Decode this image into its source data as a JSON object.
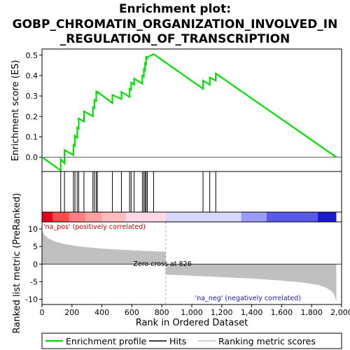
{
  "chart_data": {
    "type": "line",
    "title_lines": [
      "Enrichment plot:",
      "GOBP_CHROMATIN_ORGANIZATION_INVOLVED_IN",
      "_REGULATION_OF_TRANSCRIPTION"
    ],
    "xlabel": "Rank in Ordered Dataset",
    "xlim": [
      0,
      2000
    ],
    "x_ticks": [
      0,
      200,
      400,
      600,
      800,
      1000,
      1200,
      1400,
      1600,
      1800,
      2000
    ],
    "x_tick_labels": [
      "0",
      "200",
      "400",
      "600",
      "800",
      "1,000",
      "1,200",
      "1,400",
      "1,600",
      "1,800",
      "2,000"
    ],
    "max_rank": 1965,
    "es_panel": {
      "ylabel": "Enrichment score (ES)",
      "ylim": [
        -0.07,
        0.53
      ],
      "y_ticks": [
        0.0,
        0.1,
        0.2,
        0.3,
        0.4,
        0.5
      ],
      "y_tick_labels": [
        "0.0",
        "0.1",
        "0.2",
        "0.3",
        "0.4",
        "0.5"
      ],
      "curve": {
        "x": [
          0,
          125,
          125,
          150,
          150,
          210,
          210,
          220,
          220,
          235,
          235,
          245,
          245,
          280,
          280,
          340,
          340,
          350,
          350,
          362,
          362,
          370,
          370,
          470,
          470,
          530,
          530,
          585,
          585,
          595,
          595,
          615,
          615,
          670,
          670,
          680,
          680,
          688,
          688,
          695,
          695,
          703,
          703,
          745,
          745,
          1075,
          1075,
          1120,
          1120,
          1160,
          1160,
          1965
        ],
        "y": [
          0.0,
          -0.065,
          -0.01,
          -0.03,
          0.035,
          0.01,
          0.06,
          0.055,
          0.105,
          0.095,
          0.145,
          0.14,
          0.19,
          0.175,
          0.225,
          0.2,
          0.245,
          0.24,
          0.28,
          0.275,
          0.32,
          0.315,
          0.32,
          0.265,
          0.305,
          0.285,
          0.32,
          0.295,
          0.335,
          0.33,
          0.365,
          0.355,
          0.385,
          0.36,
          0.4,
          0.395,
          0.43,
          0.425,
          0.46,
          0.455,
          0.495,
          0.48,
          0.49,
          0.505,
          0.505,
          0.335,
          0.375,
          0.355,
          0.39,
          0.375,
          0.41,
          0.0
        ]
      },
      "line_color": "#00e000"
    },
    "hits": [
      125,
      150,
      210,
      220,
      235,
      245,
      280,
      340,
      350,
      362,
      370,
      470,
      530,
      585,
      595,
      615,
      670,
      680,
      688,
      695,
      703,
      745,
      1075,
      1120,
      1160
    ],
    "color_bar": [
      {
        "start": 0,
        "end": 70,
        "color": "#e8001c"
      },
      {
        "start": 70,
        "end": 180,
        "color": "#ff4a4a"
      },
      {
        "start": 180,
        "end": 290,
        "color": "#ff8080"
      },
      {
        "start": 290,
        "end": 400,
        "color": "#ff9e9e"
      },
      {
        "start": 400,
        "end": 560,
        "color": "#ffbcbc"
      },
      {
        "start": 560,
        "end": 826,
        "color": "#ffd8e8"
      },
      {
        "start": 826,
        "end": 1330,
        "color": "#d8d8ff"
      },
      {
        "start": 1330,
        "end": 1500,
        "color": "#9a9aff"
      },
      {
        "start": 1500,
        "end": 1840,
        "color": "#5a5ae8"
      },
      {
        "start": 1840,
        "end": 1965,
        "color": "#1a1ad0"
      }
    ],
    "metric_panel": {
      "ylabel": "Ranked list metric (PreRanked)",
      "ylim": [
        -11.5,
        12
      ],
      "y_ticks": [
        -10,
        -5,
        0,
        5,
        10
      ],
      "y_tick_labels": [
        "-10",
        "-5",
        "0",
        "5",
        "10"
      ],
      "profile": {
        "x": [
          0,
          5,
          15,
          40,
          80,
          150,
          250,
          400,
          600,
          826,
          826,
          1000,
          1200,
          1400,
          1600,
          1750,
          1850,
          1900,
          1930,
          1950,
          1960,
          1965
        ],
        "y": [
          10.8,
          9.2,
          8.3,
          7.4,
          6.5,
          5.7,
          5.0,
          4.4,
          3.9,
          3.5,
          -3.0,
          -3.3,
          -3.7,
          -4.1,
          -4.7,
          -5.3,
          -6.0,
          -6.8,
          -7.6,
          -8.6,
          -10.0,
          -10.8
        ]
      },
      "fill_color": "#c0c0c0",
      "zero_cross": 826,
      "zero_cross_label": "Zero cross at 826",
      "pos_label": "'na_pos' (positively correlated)",
      "neg_label": "'na_neg' (negatively correlated)"
    },
    "legend": [
      {
        "label": "Enrichment profile",
        "color": "#00e000"
      },
      {
        "label": "Hits",
        "color": "#000000"
      },
      {
        "label": "Ranking metric scores",
        "color": "#c0c0c0"
      }
    ]
  }
}
